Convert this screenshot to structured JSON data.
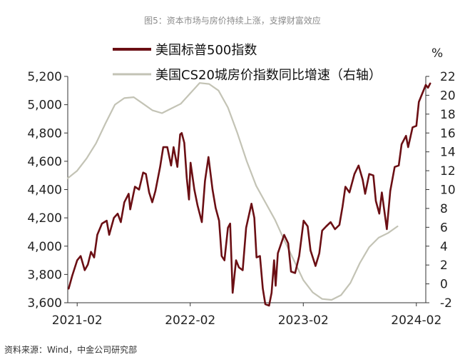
{
  "title": "图5：资本市场与房价持续上涨，支撑财富效应",
  "footer": "资料来源：Wind，中金公司研究部",
  "chart_data": {
    "type": "line",
    "x_axis": {
      "start": "2021-01",
      "end": "2024-03",
      "tick_labels": [
        "2021-02",
        "2022-02",
        "2023-02",
        "2024-02"
      ]
    },
    "y_left": {
      "min": 3600,
      "max": 5200,
      "step": 200,
      "tick_labels": [
        "3,600",
        "3,800",
        "4,000",
        "4,200",
        "4,400",
        "4,600",
        "4,800",
        "5,000",
        "5,200"
      ]
    },
    "y_right": {
      "min": -2,
      "max": 22,
      "step": 2,
      "unit": "%",
      "tick_labels": [
        "-2",
        "0",
        "2",
        "4",
        "6",
        "8",
        "10",
        "12",
        "14",
        "16",
        "18",
        "20",
        "22"
      ]
    },
    "grid": false,
    "legend_position": "top-left",
    "series": [
      {
        "name": "美国标普500指数",
        "axis": "left",
        "color": "#6b0f14",
        "points": [
          [
            "2021-01-04",
            3700
          ],
          [
            "2021-01-15",
            3790
          ],
          [
            "2021-02-01",
            3900
          ],
          [
            "2021-02-12",
            3930
          ],
          [
            "2021-02-25",
            3830
          ],
          [
            "2021-03-05",
            3870
          ],
          [
            "2021-03-15",
            3960
          ],
          [
            "2021-03-25",
            3920
          ],
          [
            "2021-04-05",
            4080
          ],
          [
            "2021-04-20",
            4160
          ],
          [
            "2021-05-05",
            4180
          ],
          [
            "2021-05-13",
            4080
          ],
          [
            "2021-05-28",
            4200
          ],
          [
            "2021-06-10",
            4230
          ],
          [
            "2021-06-20",
            4170
          ],
          [
            "2021-07-01",
            4310
          ],
          [
            "2021-07-15",
            4370
          ],
          [
            "2021-07-20",
            4260
          ],
          [
            "2021-08-05",
            4420
          ],
          [
            "2021-08-18",
            4400
          ],
          [
            "2021-08-31",
            4520
          ],
          [
            "2021-09-10",
            4510
          ],
          [
            "2021-09-20",
            4380
          ],
          [
            "2021-09-30",
            4310
          ],
          [
            "2021-10-10",
            4390
          ],
          [
            "2021-10-25",
            4560
          ],
          [
            "2021-11-05",
            4700
          ],
          [
            "2021-11-18",
            4700
          ],
          [
            "2021-11-30",
            4570
          ],
          [
            "2021-12-08",
            4700
          ],
          [
            "2021-12-20",
            4560
          ],
          [
            "2021-12-29",
            4790
          ],
          [
            "2022-01-04",
            4800
          ],
          [
            "2022-01-12",
            4730
          ],
          [
            "2022-01-20",
            4480
          ],
          [
            "2022-01-27",
            4330
          ],
          [
            "2022-02-02",
            4590
          ],
          [
            "2022-02-14",
            4400
          ],
          [
            "2022-02-24",
            4290
          ],
          [
            "2022-03-08",
            4170
          ],
          [
            "2022-03-18",
            4460
          ],
          [
            "2022-03-29",
            4630
          ],
          [
            "2022-04-12",
            4400
          ],
          [
            "2022-04-22",
            4270
          ],
          [
            "2022-05-03",
            4180
          ],
          [
            "2022-05-11",
            3930
          ],
          [
            "2022-05-20",
            3900
          ],
          [
            "2022-05-31",
            4130
          ],
          [
            "2022-06-08",
            4160
          ],
          [
            "2022-06-16",
            3670
          ],
          [
            "2022-06-27",
            3900
          ],
          [
            "2022-07-06",
            3850
          ],
          [
            "2022-07-18",
            3830
          ],
          [
            "2022-07-29",
            4130
          ],
          [
            "2022-08-16",
            4300
          ],
          [
            "2022-08-25",
            4200
          ],
          [
            "2022-09-02",
            3920
          ],
          [
            "2022-09-13",
            3930
          ],
          [
            "2022-09-22",
            3700
          ],
          [
            "2022-09-30",
            3590
          ],
          [
            "2022-10-12",
            3580
          ],
          [
            "2022-10-20",
            3670
          ],
          [
            "2022-10-28",
            3900
          ],
          [
            "2022-11-03",
            3720
          ],
          [
            "2022-11-10",
            3950
          ],
          [
            "2022-11-30",
            4080
          ],
          [
            "2022-12-13",
            4020
          ],
          [
            "2022-12-22",
            3820
          ],
          [
            "2023-01-05",
            3810
          ],
          [
            "2023-01-18",
            3930
          ],
          [
            "2023-02-02",
            4180
          ],
          [
            "2023-02-15",
            4140
          ],
          [
            "2023-02-24",
            3970
          ],
          [
            "2023-03-10",
            3860
          ],
          [
            "2023-03-22",
            3950
          ],
          [
            "2023-03-31",
            4110
          ],
          [
            "2023-04-14",
            4140
          ],
          [
            "2023-04-28",
            4170
          ],
          [
            "2023-05-12",
            4120
          ],
          [
            "2023-05-26",
            4150
          ],
          [
            "2023-06-06",
            4280
          ],
          [
            "2023-06-15",
            4420
          ],
          [
            "2023-06-28",
            4380
          ],
          [
            "2023-07-14",
            4510
          ],
          [
            "2023-07-27",
            4570
          ],
          [
            "2023-08-10",
            4470
          ],
          [
            "2023-08-18",
            4370
          ],
          [
            "2023-08-31",
            4510
          ],
          [
            "2023-09-14",
            4500
          ],
          [
            "2023-09-22",
            4320
          ],
          [
            "2023-10-03",
            4230
          ],
          [
            "2023-10-11",
            4380
          ],
          [
            "2023-10-27",
            4120
          ],
          [
            "2023-11-08",
            4390
          ],
          [
            "2023-11-22",
            4560
          ],
          [
            "2023-12-05",
            4570
          ],
          [
            "2023-12-14",
            4720
          ],
          [
            "2023-12-28",
            4780
          ],
          [
            "2024-01-05",
            4700
          ],
          [
            "2024-01-19",
            4840
          ],
          [
            "2024-01-31",
            4850
          ],
          [
            "2024-02-09",
            5020
          ],
          [
            "2024-02-22",
            5090
          ],
          [
            "2024-03-01",
            5140
          ],
          [
            "2024-03-08",
            5120
          ],
          [
            "2024-03-15",
            5150
          ]
        ]
      },
      {
        "name": "美国CS20城房价指数同比增速（右轴）",
        "axis": "right",
        "color": "#c3c3b5",
        "points": [
          [
            "2021-01",
            11.2
          ],
          [
            "2021-02",
            12.0
          ],
          [
            "2021-03",
            13.3
          ],
          [
            "2021-04",
            14.9
          ],
          [
            "2021-05",
            17.0
          ],
          [
            "2021-06",
            19.0
          ],
          [
            "2021-07",
            19.7
          ],
          [
            "2021-08",
            19.8
          ],
          [
            "2021-09",
            19.1
          ],
          [
            "2021-10",
            18.4
          ],
          [
            "2021-11",
            18.1
          ],
          [
            "2021-12",
            18.6
          ],
          [
            "2022-01",
            19.1
          ],
          [
            "2022-02",
            20.2
          ],
          [
            "2022-03",
            21.3
          ],
          [
            "2022-04",
            21.2
          ],
          [
            "2022-05",
            20.5
          ],
          [
            "2022-06",
            18.7
          ],
          [
            "2022-07",
            16.0
          ],
          [
            "2022-08",
            13.0
          ],
          [
            "2022-09",
            10.4
          ],
          [
            "2022-10",
            8.6
          ],
          [
            "2022-11",
            6.8
          ],
          [
            "2022-12",
            4.6
          ],
          [
            "2023-01",
            2.5
          ],
          [
            "2023-02",
            0.4
          ],
          [
            "2023-03",
            -0.9
          ],
          [
            "2023-04",
            -1.6
          ],
          [
            "2023-05",
            -1.7
          ],
          [
            "2023-06",
            -1.2
          ],
          [
            "2023-07",
            0.1
          ],
          [
            "2023-08",
            2.2
          ],
          [
            "2023-09",
            3.9
          ],
          [
            "2023-10",
            4.9
          ],
          [
            "2023-11",
            5.4
          ],
          [
            "2023-12",
            6.1
          ]
        ]
      }
    ]
  }
}
